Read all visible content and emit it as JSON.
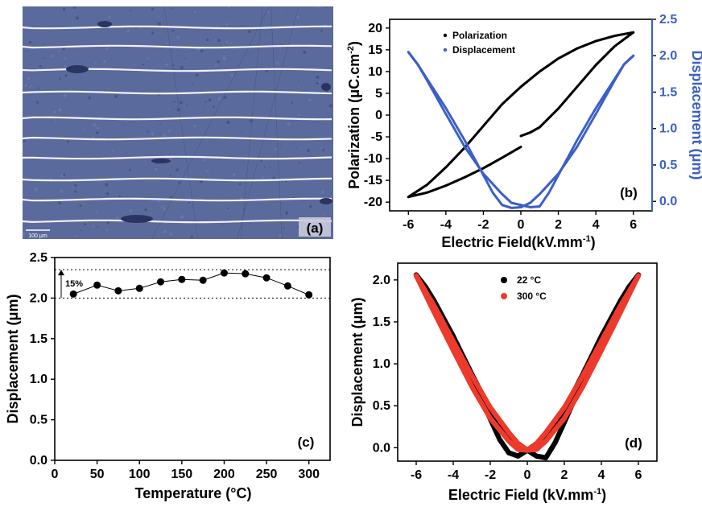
{
  "colors": {
    "blue": "#3b5fc6",
    "black": "#000000",
    "red": "#ee3a2c",
    "micro_bg": "#5b6a9c",
    "stripe": "#f2f2f8"
  },
  "panel_a": {
    "label": "(a)",
    "scale_text": "100 μm"
  },
  "chart_data": [
    {
      "id": "b",
      "type": "scatter",
      "panel_label": "(b)",
      "xlabel": "Electric Field(kV.mm",
      "xlabel_sup": "-1",
      "xlabel_tail": ")",
      "ylabel": "Polarization (μC.cm",
      "ylabel_sup": "-2",
      "ylabel_tail": ")",
      "y2label": "Displacement (μm)",
      "xlim": [
        -7,
        7
      ],
      "ylim": [
        -22,
        22
      ],
      "y2lim": [
        -0.13,
        2.5
      ],
      "xticks": [
        "-6",
        "-4",
        "-2",
        "0",
        "2",
        "4",
        "6"
      ],
      "yticks": [
        "-20",
        "-15",
        "-10",
        "-5",
        "0",
        "5",
        "10",
        "15",
        "20"
      ],
      "y2ticks": [
        "0.0",
        "0.5",
        "1.0",
        "1.5",
        "2.0",
        "2.5"
      ],
      "legend": [
        "Polarization",
        "Displacement"
      ],
      "series": [
        {
          "name": "Polarization",
          "axis": "left",
          "color": "#000000",
          "segments": [
            {
              "x": [
                0.0,
                0.5,
                1,
                2,
                3,
                4,
                5,
                6
              ],
              "y": [
                -4.8,
                -4.0,
                -2.8,
                1.5,
                6.5,
                11.5,
                15.8,
                19
              ]
            },
            {
              "x": [
                6,
                5,
                4,
                3,
                2,
                1,
                0,
                -1,
                -2,
                -3,
                -4,
                -5,
                -6
              ],
              "y": [
                19,
                18.2,
                17.0,
                15.3,
                13.0,
                10.0,
                6.5,
                2.5,
                -2.5,
                -7.5,
                -12.0,
                -16.0,
                -18.8
              ]
            },
            {
              "x": [
                -6,
                -5,
                -4,
                -3,
                -2,
                -1,
                0
              ],
              "y": [
                -18.8,
                -17.8,
                -16.2,
                -14.3,
                -12.2,
                -9.8,
                -7.3
              ]
            }
          ]
        },
        {
          "name": "Displacement",
          "axis": "right",
          "color": "#3b5fc6",
          "segments": [
            {
              "x": [
                -6,
                -5.5,
                -5,
                -4,
                -3,
                -2,
                -1.5,
                -1,
                -0.5,
                0
              ],
              "y": [
                2.05,
                1.88,
                1.68,
                1.28,
                0.84,
                0.36,
                0.12,
                -0.05,
                -0.09,
                -0.08
              ]
            },
            {
              "x": [
                -6,
                -5.5,
                -5,
                -4,
                -3,
                -2,
                -1,
                -0.5,
                0
              ],
              "y": [
                2.05,
                1.88,
                1.66,
                1.2,
                0.75,
                0.38,
                0.1,
                -0.02,
                -0.05
              ]
            },
            {
              "x": [
                0,
                0.5,
                1,
                1.5,
                2,
                3,
                4,
                5,
                5.5,
                6
              ],
              "y": [
                -0.05,
                -0.08,
                -0.07,
                0.12,
                0.36,
                0.84,
                1.28,
                1.68,
                1.88,
                2.0
              ]
            },
            {
              "x": [
                0,
                0.5,
                1,
                2,
                3,
                4,
                5,
                5.5,
                6
              ],
              "y": [
                -0.08,
                -0.02,
                0.1,
                0.38,
                0.75,
                1.2,
                1.66,
                1.88,
                2.0
              ]
            }
          ]
        }
      ]
    },
    {
      "id": "c",
      "type": "line",
      "panel_label": "(c)",
      "xlabel": "Temperature (°C)",
      "ylabel": "Displacement (μm)",
      "xlim": [
        0,
        325
      ],
      "ylim": [
        0,
        2.5
      ],
      "xticks": [
        "0",
        "50",
        "100",
        "150",
        "200",
        "250",
        "300"
      ],
      "yticks": [
        "0.0",
        "0.5",
        "1.0",
        "1.5",
        "2.0",
        "2.5"
      ],
      "annotation": "15%",
      "reference_lines": [
        2.0,
        2.35
      ],
      "series": [
        {
          "name": "",
          "color": "#000000",
          "x": [
            22,
            50,
            75,
            100,
            125,
            150,
            175,
            200,
            225,
            250,
            275,
            300
          ],
          "y": [
            2.05,
            2.16,
            2.09,
            2.12,
            2.2,
            2.23,
            2.22,
            2.31,
            2.3,
            2.25,
            2.15,
            2.04
          ]
        }
      ]
    },
    {
      "id": "d",
      "type": "scatter",
      "panel_label": "(d)",
      "xlabel": "Electric Field (kV.mm",
      "xlabel_sup": "-1",
      "xlabel_tail": ")",
      "ylabel": "Displacement (μm)",
      "xlim": [
        -7,
        7
      ],
      "ylim": [
        -0.16,
        2.2
      ],
      "xticks": [
        "-6",
        "-4",
        "-2",
        "0",
        "2",
        "4",
        "6"
      ],
      "yticks": [
        "0.0",
        "0.5",
        "1.0",
        "1.5",
        "2.0"
      ],
      "legend": [
        "22 °C",
        "300 °C"
      ],
      "series": [
        {
          "name": "22 °C",
          "color": "#000000",
          "segments": [
            {
              "x": [
                -6,
                -5.5,
                -5,
                -4,
                -3,
                -2,
                -1.5,
                -1,
                -0.5,
                0
              ],
              "y": [
                2.06,
                1.9,
                1.7,
                1.28,
                0.82,
                0.34,
                0.1,
                -0.06,
                -0.1,
                -0.03
              ]
            },
            {
              "x": [
                -6,
                -5.5,
                -5,
                -4,
                -3,
                -2,
                -1,
                -0.5,
                0
              ],
              "y": [
                2.06,
                1.92,
                1.74,
                1.33,
                0.88,
                0.45,
                0.14,
                0.05,
                -0.03
              ]
            },
            {
              "x": [
                0,
                0.5,
                1,
                1.5,
                2,
                3,
                4,
                5,
                5.5,
                6
              ],
              "y": [
                -0.03,
                -0.1,
                -0.12,
                0.06,
                0.3,
                0.8,
                1.28,
                1.72,
                1.9,
                2.06
              ]
            },
            {
              "x": [
                0,
                0.5,
                1,
                2,
                3,
                4,
                5,
                5.5,
                6
              ],
              "y": [
                -0.03,
                0.05,
                0.14,
                0.45,
                0.88,
                1.33,
                1.74,
                1.92,
                2.06
              ]
            }
          ]
        },
        {
          "name": "300 °C",
          "color": "#ee3a2c",
          "segments": [
            {
              "x": [
                -6,
                -5,
                -4,
                -3,
                -2,
                -1,
                -0.5,
                0
              ],
              "y": [
                2.05,
                1.6,
                1.16,
                0.73,
                0.35,
                0.08,
                -0.02,
                -0.03
              ]
            },
            {
              "x": [
                -6,
                -5,
                -4,
                -3,
                -2,
                -1,
                -0.5,
                0
              ],
              "y": [
                2.05,
                1.68,
                1.27,
                0.86,
                0.48,
                0.18,
                0.05,
                -0.03
              ]
            },
            {
              "x": [
                0,
                0.5,
                1,
                2,
                3,
                4,
                5,
                6
              ],
              "y": [
                -0.03,
                -0.02,
                0.08,
                0.35,
                0.73,
                1.16,
                1.6,
                2.05
              ]
            },
            {
              "x": [
                0,
                0.5,
                1,
                2,
                3,
                4,
                5,
                6
              ],
              "y": [
                -0.03,
                0.05,
                0.18,
                0.48,
                0.86,
                1.27,
                1.68,
                2.05
              ]
            }
          ]
        }
      ]
    }
  ]
}
